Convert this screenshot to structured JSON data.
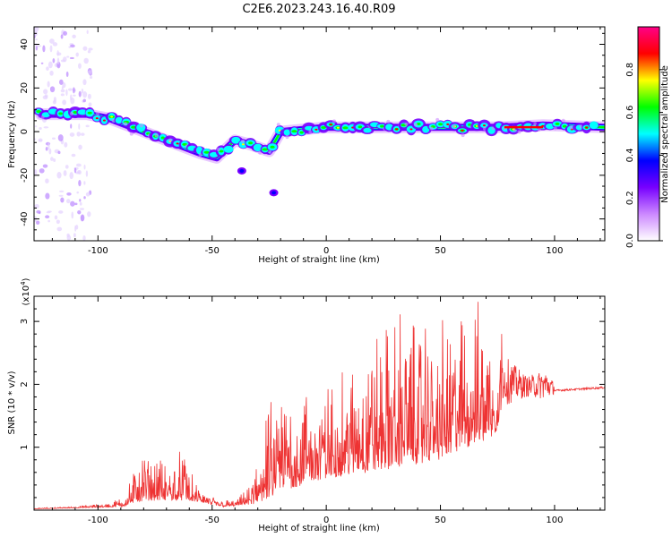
{
  "title": "C2E6.2023.243.16.40.R09",
  "chart_data": [
    {
      "type": "heatmap",
      "xlabel": "Height of straight line (km)",
      "ylabel": "Frequency (Hz)",
      "xlim": [
        -128,
        122
      ],
      "ylim": [
        -50,
        48
      ],
      "xticks": [
        -100,
        -50,
        0,
        50,
        100
      ],
      "yticks": [
        -40,
        -20,
        0,
        20,
        40
      ],
      "colorbar": {
        "label": "Normalized spectral amplitude",
        "range": [
          0,
          1
        ],
        "ticks": [
          "0.0",
          "0.2",
          "0.4",
          "0.6",
          "0.8"
        ],
        "colors": [
          "#ffffff",
          "#cc88ff",
          "#7700ff",
          "#0000ff",
          "#00ffff",
          "#00ff00",
          "#ffff00",
          "#ff0000",
          "#ff0088"
        ]
      },
      "ridge": [
        {
          "x": -125,
          "y": 8
        },
        {
          "x": -115,
          "y": 8
        },
        {
          "x": -105,
          "y": 8
        },
        {
          "x": -95,
          "y": 6
        },
        {
          "x": -85,
          "y": 2
        },
        {
          "x": -75,
          "y": -2
        },
        {
          "x": -65,
          "y": -6
        },
        {
          "x": -55,
          "y": -10
        },
        {
          "x": -48,
          "y": -12
        },
        {
          "x": -40,
          "y": -4
        },
        {
          "x": -33,
          "y": -6
        },
        {
          "x": -25,
          "y": -9
        },
        {
          "x": -20,
          "y": 0
        },
        {
          "x": -10,
          "y": 1
        },
        {
          "x": 0,
          "y": 2
        },
        {
          "x": 25,
          "y": 2
        },
        {
          "x": 50,
          "y": 2
        },
        {
          "x": 75,
          "y": 2
        },
        {
          "x": 95,
          "y": 3
        },
        {
          "x": 122,
          "y": 2
        }
      ]
    },
    {
      "type": "line",
      "xlabel": "Height of straight line (km)",
      "ylabel": "SNR (10 * v/v)",
      "multiplier": "(x10",
      "multiplier_exp": "4",
      "multiplier_close": ")",
      "xlim": [
        -128,
        122
      ],
      "ylim": [
        0,
        3.4
      ],
      "xticks": [
        -100,
        -50,
        0,
        50,
        100
      ],
      "yticks": [
        1,
        2,
        3
      ],
      "color": "#ee3333",
      "series": [
        {
          "envelope": [
            {
              "x": -128,
              "y": 0.03
            },
            {
              "x": -110,
              "y": 0.06
            },
            {
              "x": -95,
              "y": 0.12
            },
            {
              "x": -88,
              "y": 0.25
            },
            {
              "x": -82,
              "y": 0.95
            },
            {
              "x": -75,
              "y": 0.85
            },
            {
              "x": -68,
              "y": 0.8
            },
            {
              "x": -62,
              "y": 1.0
            },
            {
              "x": -58,
              "y": 0.45
            },
            {
              "x": -50,
              "y": 0.22
            },
            {
              "x": -40,
              "y": 0.15
            },
            {
              "x": -33,
              "y": 0.4
            },
            {
              "x": -28,
              "y": 1.5
            },
            {
              "x": -20,
              "y": 2.0
            },
            {
              "x": -10,
              "y": 2.0
            },
            {
              "x": 0,
              "y": 2.0
            },
            {
              "x": 10,
              "y": 2.4
            },
            {
              "x": 20,
              "y": 2.8
            },
            {
              "x": 30,
              "y": 3.2
            },
            {
              "x": 40,
              "y": 3.2
            },
            {
              "x": 50,
              "y": 3.0
            },
            {
              "x": 60,
              "y": 3.3
            },
            {
              "x": 70,
              "y": 3.3
            },
            {
              "x": 78,
              "y": 2.9
            },
            {
              "x": 88,
              "y": 2.3
            },
            {
              "x": 96,
              "y": 2.5
            },
            {
              "x": 100,
              "y": 2.1
            },
            {
              "x": 110,
              "y": 2.0
            },
            {
              "x": 122,
              "y": 2.0
            }
          ],
          "baseline": [
            {
              "x": -128,
              "y": 0.02
            },
            {
              "x": -90,
              "y": 0.05
            },
            {
              "x": -80,
              "y": 0.15
            },
            {
              "x": -60,
              "y": 0.15
            },
            {
              "x": -45,
              "y": 0.05
            },
            {
              "x": -30,
              "y": 0.1
            },
            {
              "x": -20,
              "y": 0.3
            },
            {
              "x": 0,
              "y": 0.5
            },
            {
              "x": 20,
              "y": 0.6
            },
            {
              "x": 50,
              "y": 0.8
            },
            {
              "x": 75,
              "y": 1.2
            },
            {
              "x": 78,
              "y": 1.9
            },
            {
              "x": 100,
              "y": 1.9
            },
            {
              "x": 122,
              "y": 1.95
            }
          ]
        }
      ]
    }
  ]
}
